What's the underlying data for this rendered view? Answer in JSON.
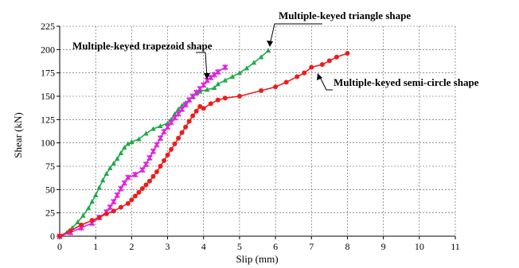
{
  "chart_data": {
    "type": "line",
    "title": "",
    "xlabel": "Slip (mm)",
    "ylabel": "Shear (kN)",
    "xlim": [
      0,
      11
    ],
    "ylim": [
      0,
      225
    ],
    "xticks": [
      0,
      1,
      2,
      3,
      4,
      5,
      6,
      7,
      8,
      9,
      10,
      11
    ],
    "yticks": [
      0,
      25,
      50,
      75,
      100,
      125,
      150,
      175,
      200,
      225
    ],
    "grid": true,
    "legend": "none",
    "annotations": [
      {
        "id": "triangle",
        "text": "Multiple-keyed triangle shape",
        "target": [
          5.8,
          199
        ]
      },
      {
        "id": "trapezoid",
        "text": "Multiple-keyed trapezoid shape",
        "target": [
          4.0,
          162
        ]
      },
      {
        "id": "semicircle",
        "text": "Multiple-keyed semi-circle shape",
        "target": [
          7.0,
          178
        ]
      }
    ],
    "series": [
      {
        "id": "triangle",
        "color": "#1fa84a",
        "marker": "triangle",
        "points": [
          [
            0,
            0
          ],
          [
            0.2,
            4
          ],
          [
            0.35,
            9
          ],
          [
            0.5,
            15
          ],
          [
            0.65,
            22
          ],
          [
            0.8,
            30
          ],
          [
            0.9,
            37
          ],
          [
            1.0,
            44
          ],
          [
            1.1,
            52
          ],
          [
            1.2,
            60
          ],
          [
            1.3,
            67
          ],
          [
            1.4,
            73
          ],
          [
            1.5,
            78
          ],
          [
            1.6,
            83
          ],
          [
            1.7,
            89
          ],
          [
            1.8,
            95
          ],
          [
            1.9,
            99
          ],
          [
            2.0,
            101
          ],
          [
            2.2,
            104
          ],
          [
            2.4,
            110
          ],
          [
            2.6,
            115
          ],
          [
            2.8,
            118
          ],
          [
            3.0,
            121
          ],
          [
            3.1,
            125
          ],
          [
            3.2,
            131
          ],
          [
            3.3,
            136
          ],
          [
            3.4,
            140
          ],
          [
            3.5,
            143
          ],
          [
            3.6,
            146
          ],
          [
            3.7,
            149
          ],
          [
            3.8,
            153
          ],
          [
            3.9,
            155
          ],
          [
            4.1,
            157
          ],
          [
            4.3,
            159
          ],
          [
            4.4,
            163
          ],
          [
            4.6,
            167
          ],
          [
            4.8,
            171
          ],
          [
            5.0,
            175
          ],
          [
            5.2,
            180
          ],
          [
            5.4,
            186
          ],
          [
            5.6,
            192
          ],
          [
            5.8,
            199
          ]
        ]
      },
      {
        "id": "trapezoid",
        "color": "#e020e0",
        "marker": "star",
        "points": [
          [
            0,
            0
          ],
          [
            0.3,
            4
          ],
          [
            0.6,
            9
          ],
          [
            0.9,
            14
          ],
          [
            1.1,
            20
          ],
          [
            1.3,
            26
          ],
          [
            1.4,
            31
          ],
          [
            1.5,
            37
          ],
          [
            1.6,
            44
          ],
          [
            1.7,
            51
          ],
          [
            1.8,
            57
          ],
          [
            1.9,
            63
          ],
          [
            2.1,
            66
          ],
          [
            2.3,
            71
          ],
          [
            2.4,
            77
          ],
          [
            2.5,
            84
          ],
          [
            2.6,
            91
          ],
          [
            2.7,
            98
          ],
          [
            2.8,
            105
          ],
          [
            2.9,
            112
          ],
          [
            3.0,
            117
          ],
          [
            3.1,
            122
          ],
          [
            3.2,
            127
          ],
          [
            3.3,
            131
          ],
          [
            3.4,
            136
          ],
          [
            3.5,
            141
          ],
          [
            3.6,
            146
          ],
          [
            3.7,
            150
          ],
          [
            3.8,
            154
          ],
          [
            3.9,
            158
          ],
          [
            4.0,
            162
          ],
          [
            4.1,
            167
          ],
          [
            4.2,
            170
          ],
          [
            4.3,
            173
          ],
          [
            4.4,
            176
          ],
          [
            4.6,
            181
          ]
        ]
      },
      {
        "id": "semicircle",
        "color": "#ee1c1c",
        "marker": "circle",
        "points": [
          [
            0,
            0
          ],
          [
            0.3,
            6
          ],
          [
            0.6,
            12
          ],
          [
            0.9,
            17
          ],
          [
            1.1,
            20
          ],
          [
            1.3,
            24
          ],
          [
            1.5,
            27
          ],
          [
            1.7,
            31
          ],
          [
            1.9,
            35
          ],
          [
            2.0,
            39
          ],
          [
            2.1,
            43
          ],
          [
            2.2,
            47
          ],
          [
            2.3,
            51
          ],
          [
            2.4,
            55
          ],
          [
            2.5,
            59
          ],
          [
            2.6,
            64
          ],
          [
            2.7,
            69
          ],
          [
            2.8,
            75
          ],
          [
            2.9,
            81
          ],
          [
            3.0,
            87
          ],
          [
            3.1,
            93
          ],
          [
            3.2,
            99
          ],
          [
            3.3,
            105
          ],
          [
            3.4,
            111
          ],
          [
            3.5,
            117
          ],
          [
            3.6,
            123
          ],
          [
            3.7,
            129
          ],
          [
            3.8,
            134
          ],
          [
            3.9,
            139
          ],
          [
            4.0,
            137
          ],
          [
            4.2,
            142
          ],
          [
            4.4,
            146
          ],
          [
            4.6,
            148
          ],
          [
            5.0,
            150
          ],
          [
            5.6,
            156
          ],
          [
            6.0,
            160
          ],
          [
            6.3,
            165
          ],
          [
            6.6,
            171
          ],
          [
            6.8,
            175
          ],
          [
            7.0,
            181
          ],
          [
            7.3,
            184
          ],
          [
            7.5,
            188
          ],
          [
            7.7,
            192
          ],
          [
            8.0,
            196
          ]
        ]
      }
    ]
  }
}
